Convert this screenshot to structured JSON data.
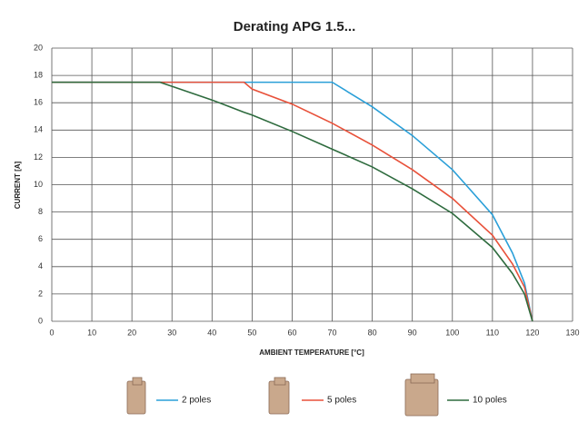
{
  "chart_data": {
    "type": "line",
    "title": "Derating APG 1.5...",
    "x_label": "AMBIENT TEMPERATURE [°C]",
    "y_label": "CURRENT [A]",
    "x": [
      0,
      27,
      30,
      40,
      48,
      50,
      60,
      70,
      80,
      90,
      100,
      110,
      115,
      118,
      120
    ],
    "series": [
      {
        "name": "2 poles",
        "color": "#2a9fd8",
        "values": [
          17.5,
          17.5,
          17.5,
          17.5,
          17.5,
          17.5,
          17.5,
          17.5,
          15.7,
          13.6,
          11.1,
          7.8,
          5.0,
          2.8,
          0
        ]
      },
      {
        "name": "5 poles",
        "color": "#e8513a",
        "values": [
          17.5,
          17.5,
          17.5,
          17.5,
          17.5,
          17.0,
          15.9,
          14.5,
          12.9,
          11.1,
          9.0,
          6.3,
          4.2,
          2.5,
          0
        ]
      },
      {
        "name": "10 poles",
        "color": "#2e6b3e",
        "values": [
          17.5,
          17.5,
          17.2,
          16.2,
          15.3,
          15.1,
          13.9,
          12.6,
          11.3,
          9.7,
          7.9,
          5.4,
          3.5,
          2.0,
          0
        ]
      }
    ],
    "xlim": [
      0,
      130
    ],
    "xticks": [
      0,
      10,
      20,
      30,
      40,
      50,
      60,
      70,
      80,
      90,
      100,
      110,
      120,
      130
    ],
    "ylim": [
      0,
      20
    ],
    "yticks": [
      0,
      2,
      4,
      6,
      8,
      10,
      12,
      14,
      16,
      18,
      20
    ],
    "grid": true
  }
}
